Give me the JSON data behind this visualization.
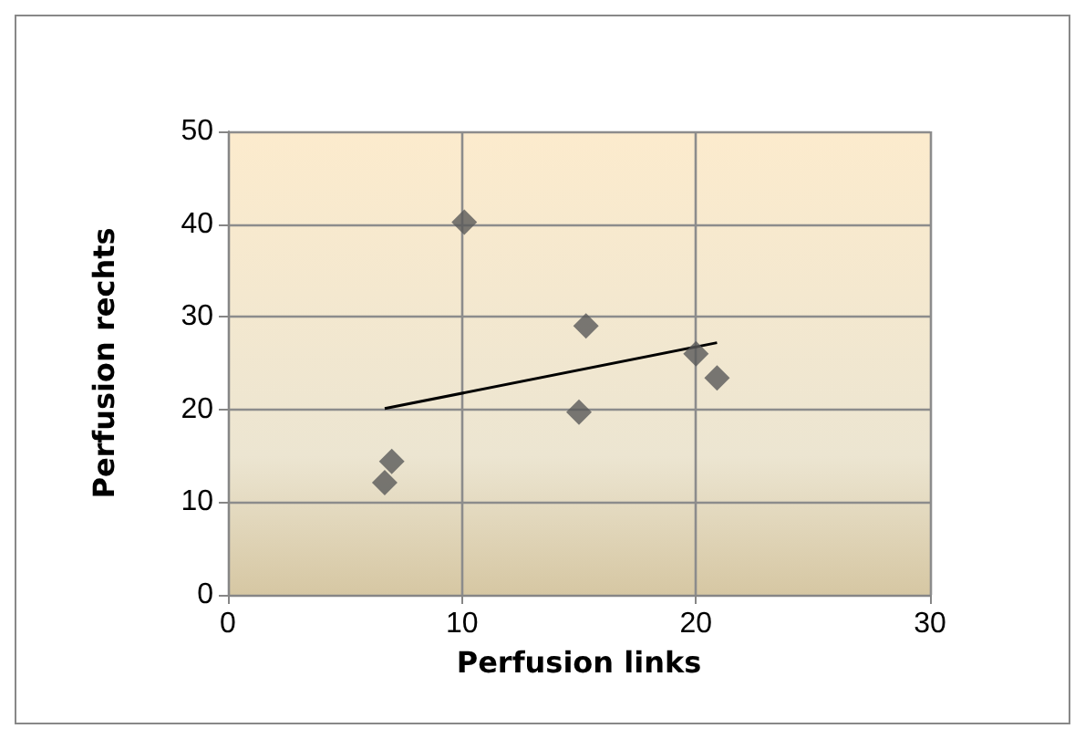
{
  "chart_data": {
    "type": "scatter",
    "xlabel": "Perfusion links",
    "ylabel": "Perfusion rechts",
    "series": [
      {
        "color": "#595959",
        "marker": "diamond",
        "x": [
          6.7,
          7.0,
          10.1,
          15.0,
          15.3,
          20.0,
          20.9
        ],
        "values": [
          12.1,
          14.4,
          40.2,
          19.7,
          29.0,
          26.0,
          23.4
        ]
      },
      {
        "type": "line",
        "color": "#000000",
        "marker": "none",
        "x": [
          6.7,
          20.9
        ],
        "values": [
          20.1,
          27.2
        ]
      }
    ],
    "xlim": [
      0,
      30
    ],
    "xticks": [
      0,
      10,
      20,
      30
    ],
    "ylim": [
      0,
      50
    ],
    "yticks": [
      0,
      10,
      20,
      30,
      40,
      50
    ],
    "grid": true
  }
}
